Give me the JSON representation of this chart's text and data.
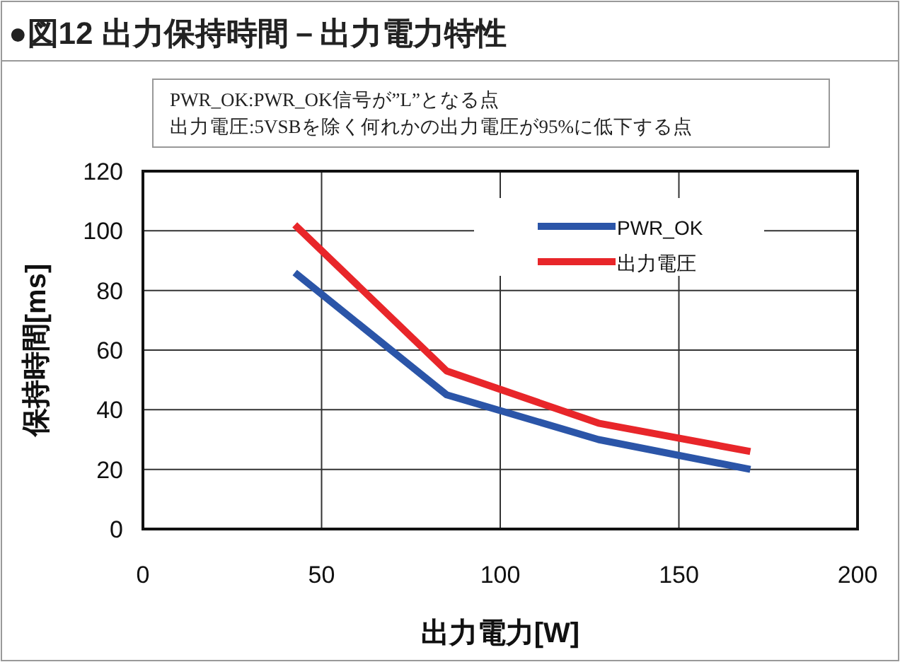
{
  "chart_data": {
    "type": "line",
    "title": "●図12 出力保持時間－出力電力特性",
    "annotations": [
      "PWR_OK:PWR_OK信号が”L”となる点",
      "出力電圧:5VSBを除く何れかの出力電圧が95%に低下する点"
    ],
    "xlabel": "出力電力[W]",
    "ylabel": "保持時間[ms]",
    "x": [
      42.5,
      85,
      127.5,
      170
    ],
    "series": [
      {
        "name": "PWR_OK",
        "color": "#2b55a8",
        "values": [
          86,
          45,
          30,
          20
        ]
      },
      {
        "name": "出力電圧",
        "color": "#e8262a",
        "values": [
          102,
          53,
          35.5,
          26
        ]
      }
    ],
    "xlim": [
      0,
      200
    ],
    "xticks": [
      0,
      50,
      100,
      150,
      200
    ],
    "ylim": [
      0,
      120
    ],
    "yticks": [
      0,
      20,
      40,
      60,
      80,
      100,
      120
    ],
    "grid": true,
    "legend": "top right",
    "marker": "none",
    "line_style": "solid"
  }
}
